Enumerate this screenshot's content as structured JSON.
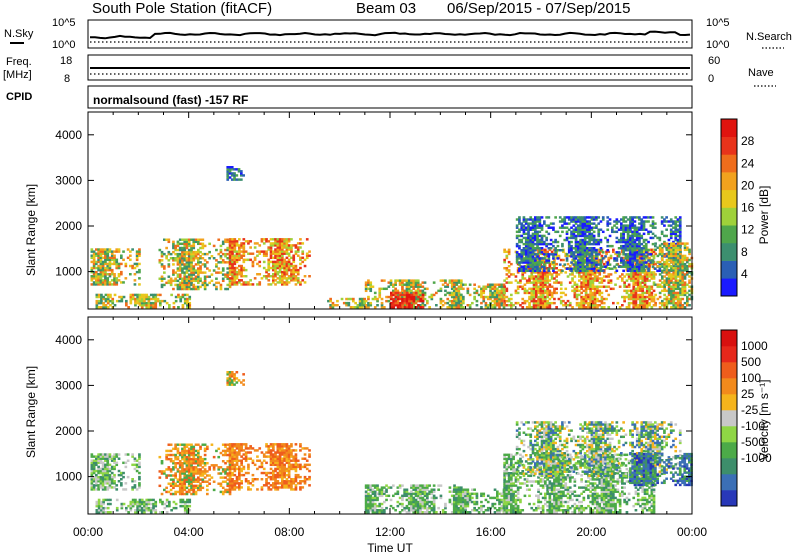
{
  "header": {
    "station": "South Pole Station (fitACF)",
    "beam": "Beam 03",
    "dates": "06/Sep/2015 - 07/Sep/2015"
  },
  "noise_panel": {
    "left_label": "N.Sky",
    "right_label": "N.Search",
    "left_ticks": [
      "10^5",
      "10^0"
    ],
    "right_ticks": [
      "10^5",
      "10^0"
    ]
  },
  "freq_panel": {
    "left_label_top": "Freq.",
    "left_label_bottom": "[MHz]",
    "right_label": "Nave",
    "left_ticks": [
      "18",
      "8"
    ],
    "right_ticks": [
      "60",
      "0"
    ]
  },
  "cpid_panel": {
    "label": "CPID",
    "program": "normalsound (fast) -157 RF"
  },
  "chart_data": [
    {
      "type": "heatmap",
      "title": "Power",
      "ylabel": "Slant Range [km]",
      "xlabel": "Time UT",
      "xlim": [
        "00:00",
        "24:00"
      ],
      "ylim": [
        180,
        4500
      ],
      "x_ticks": [
        "00:00",
        "04:00",
        "08:00",
        "12:00",
        "16:00",
        "20:00",
        "00:00"
      ],
      "y_ticks": [
        1000,
        2000,
        3000,
        4000
      ],
      "colorbar": {
        "label": "Power [dB]",
        "range": [
          0,
          32
        ],
        "ticks": [
          4,
          8,
          12,
          16,
          20,
          24,
          28
        ],
        "colors": [
          "#1a1aff",
          "#2a5fb5",
          "#3c8f6f",
          "#4fa64b",
          "#9fd13a",
          "#e8c81c",
          "#f2a21e",
          "#ef6d1c",
          "#e8331b",
          "#e0140f"
        ]
      },
      "regions": [
        {
          "t": [
            0.1,
            2.0
          ],
          "r": [
            700,
            1500
          ],
          "level": "mid"
        },
        {
          "t": [
            0.3,
            4.0
          ],
          "r": [
            200,
            500
          ],
          "level": "mid"
        },
        {
          "t": [
            2.8,
            5.6
          ],
          "r": [
            600,
            1700
          ],
          "level": "mid"
        },
        {
          "t": [
            5.6,
            8.8
          ],
          "r": [
            700,
            1700
          ],
          "level": "high"
        },
        {
          "t": [
            5.5,
            6.2
          ],
          "r": [
            3000,
            3300
          ],
          "level": "low"
        },
        {
          "t": [
            9.5,
            11.0
          ],
          "r": [
            200,
            400
          ],
          "level": "mid"
        },
        {
          "t": [
            11.0,
            14.8
          ],
          "r": [
            200,
            800
          ],
          "level": "mid"
        },
        {
          "t": [
            12.0,
            13.3
          ],
          "r": [
            200,
            550
          ],
          "level": "peak"
        },
        {
          "t": [
            14.5,
            16.5
          ],
          "r": [
            200,
            700
          ],
          "level": "mid"
        },
        {
          "t": [
            16.5,
            22.5
          ],
          "r": [
            200,
            1500
          ],
          "level": "high"
        },
        {
          "t": [
            17.0,
            23.5
          ],
          "r": [
            1000,
            2200
          ],
          "level": "low"
        },
        {
          "t": [
            22.5,
            24.0
          ],
          "r": [
            200,
            1600
          ],
          "level": "mid"
        }
      ]
    },
    {
      "type": "heatmap",
      "title": "Velocity",
      "ylabel": "Slant Range [km]",
      "xlabel": "Time UT",
      "xlim": [
        "00:00",
        "24:00"
      ],
      "ylim": [
        180,
        4500
      ],
      "x_ticks": [
        "00:00",
        "04:00",
        "08:00",
        "12:00",
        "16:00",
        "20:00",
        "00:00"
      ],
      "y_ticks": [
        1000,
        2000,
        3000,
        4000
      ],
      "colorbar": {
        "label": "Velocity [m s⁻¹]",
        "ticks": [
          "1000",
          "500",
          "100",
          "25",
          "-25",
          "-100",
          "-500",
          "-1000"
        ],
        "colors": [
          "#2838b8",
          "#3b6fb6",
          "#3d8e6b",
          "#4caa48",
          "#8fd645",
          "#c8c8c8",
          "#f5b41c",
          "#f28a1c",
          "#ef5d1c",
          "#e6281b",
          "#d8100f"
        ]
      },
      "regions": [
        {
          "t": [
            0.1,
            2.0
          ],
          "r": [
            700,
            1500
          ],
          "level": "neutral"
        },
        {
          "t": [
            0.3,
            4.0
          ],
          "r": [
            200,
            500
          ],
          "level": "neutral"
        },
        {
          "t": [
            2.8,
            5.6
          ],
          "r": [
            600,
            1700
          ],
          "level": "away"
        },
        {
          "t": [
            5.6,
            8.8
          ],
          "r": [
            700,
            1700
          ],
          "level": "strong-away"
        },
        {
          "t": [
            5.5,
            6.2
          ],
          "r": [
            3000,
            3300
          ],
          "level": "away"
        },
        {
          "t": [
            11.0,
            14.8
          ],
          "r": [
            200,
            800
          ],
          "level": "toward"
        },
        {
          "t": [
            14.5,
            16.5
          ],
          "r": [
            200,
            700
          ],
          "level": "toward"
        },
        {
          "t": [
            16.5,
            22.5
          ],
          "r": [
            200,
            1500
          ],
          "level": "toward"
        },
        {
          "t": [
            17.0,
            23.5
          ],
          "r": [
            1000,
            2200
          ],
          "level": "mixed"
        },
        {
          "t": [
            21.5,
            24.0
          ],
          "r": [
            800,
            1500
          ],
          "level": "strong-toward"
        }
      ]
    }
  ]
}
